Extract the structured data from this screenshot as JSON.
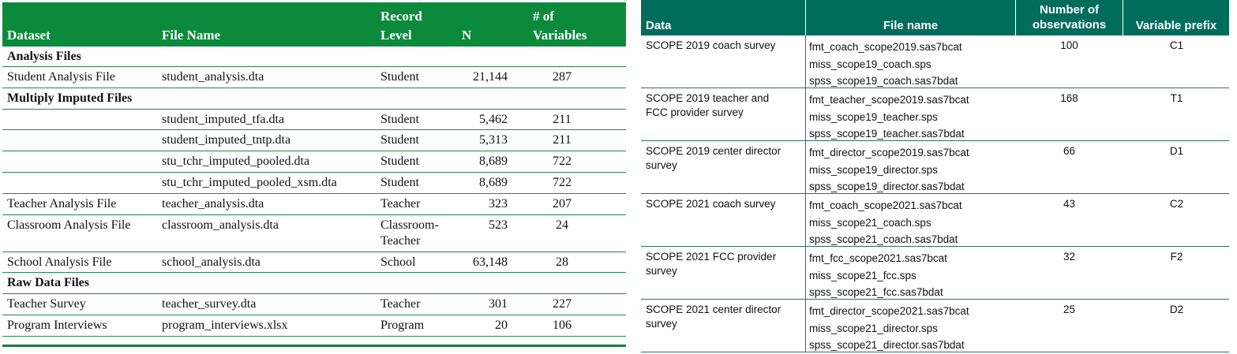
{
  "left_table": {
    "headers": {
      "dataset": "Dataset",
      "file_name": "File Name",
      "record_level_1": "Record",
      "record_level_2": "Level",
      "n": "N",
      "variables_1": "# of",
      "variables_2": "Variables"
    },
    "sections": {
      "analysis": "Analysis Files",
      "imputed": "Multiply Imputed Files",
      "raw": "Raw Data Files"
    },
    "rows": {
      "student_analysis": {
        "dataset": "Student Analysis File",
        "file": "student_analysis.dta",
        "level": "Student",
        "n": "21,144",
        "vars": "287"
      },
      "imp_tfa": {
        "dataset": "",
        "file": "student_imputed_tfa.dta",
        "level": "Student",
        "n": "5,462",
        "vars": "211"
      },
      "imp_tntp": {
        "dataset": "",
        "file": "student_imputed_tntp.dta",
        "level": "Student",
        "n": "5,313",
        "vars": "211"
      },
      "imp_pooled": {
        "dataset": "",
        "file": "stu_tchr_imputed_pooled.dta",
        "level": "Student",
        "n": "8,689",
        "vars": "722"
      },
      "imp_pooled_xsm": {
        "dataset": "",
        "file": "stu_tchr_imputed_pooled_xsm.dta",
        "level": "Student",
        "n": "8,689",
        "vars": "722"
      },
      "teacher_analysis": {
        "dataset": "Teacher Analysis File",
        "file": "teacher_analysis.dta",
        "level": "Teacher",
        "n": "323",
        "vars": "207"
      },
      "classroom_analysis": {
        "dataset": "Classroom Analysis File",
        "file": "classroom_analysis.dta",
        "level_1": "Classroom-",
        "level_2": "Teacher",
        "n": "523",
        "vars": "24"
      },
      "school_analysis": {
        "dataset": "School Analysis File",
        "file": "school_analysis.dta",
        "level": "School",
        "n": "63,148",
        "vars": "28"
      },
      "teacher_survey": {
        "dataset": "Teacher Survey",
        "file": "teacher_survey.dta",
        "level": "Teacher",
        "n": "301",
        "vars": "227"
      },
      "program_interviews": {
        "dataset": "Program Interviews",
        "file": "program_interviews.xlsx",
        "level": "Program",
        "n": "20",
        "vars": "106"
      }
    }
  },
  "right_table": {
    "headers": {
      "data": "Data",
      "file_name": "File name",
      "obs_1": "Number of",
      "obs_2": "observations",
      "prefix": "Variable prefix"
    },
    "groups": [
      {
        "data_1": "SCOPE 2019 coach survey",
        "data_2": "",
        "files": [
          "fmt_coach_scope2019.sas7bcat",
          "miss_scope19_coach.sps",
          "spss_scope19_coach.sas7bdat"
        ],
        "obs": "100",
        "prefix": "C1"
      },
      {
        "data_1": "SCOPE 2019 teacher and",
        "data_2": "FCC provider survey",
        "files": [
          "fmt_teacher_scope2019.sas7bcat",
          "miss_scope19_teacher.sps",
          "spss_scope19_teacher.sas7bdat"
        ],
        "obs": "168",
        "prefix": "T1"
      },
      {
        "data_1": "SCOPE 2019 center director",
        "data_2": "survey",
        "files": [
          "fmt_director_scope2019.sas7bcat",
          "miss_scope19_director.sps",
          "spss_scope19_director.sas7bdat"
        ],
        "obs": "66",
        "prefix": "D1"
      },
      {
        "data_1": "SCOPE 2021 coach survey",
        "data_2": "",
        "files": [
          "fmt_coach_scope2021.sas7bcat",
          "miss_scope21_coach.sps",
          "spss_scope21_coach.sas7bdat"
        ],
        "obs": "43",
        "prefix": "C2"
      },
      {
        "data_1": "SCOPE 2021 FCC provider",
        "data_2": "survey",
        "files": [
          "fmt_fcc_scope2021.sas7bcat",
          "miss_scope21_fcc.sps",
          "spss_scope21_fcc.sas7bdat"
        ],
        "obs": "32",
        "prefix": "F2"
      },
      {
        "data_1": "SCOPE 2021 center director",
        "data_2": "survey",
        "files": [
          "fmt_director_scope2021.sas7bcat",
          "miss_scope21_director.sps",
          "spss_scope21_director.sas7bdat"
        ],
        "obs": "25",
        "prefix": "D2"
      }
    ]
  }
}
